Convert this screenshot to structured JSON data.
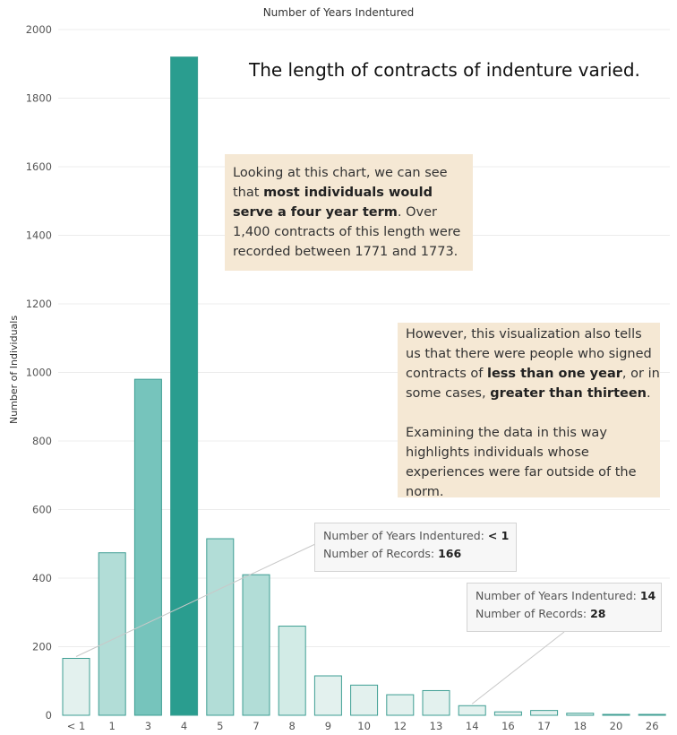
{
  "chart_data": {
    "type": "bar",
    "title": "Number of Years Indentured",
    "xlabel": "",
    "ylabel": "Number of Individuals",
    "ylim": [
      0,
      2000
    ],
    "yticks": [
      0,
      200,
      400,
      600,
      800,
      1000,
      1200,
      1400,
      1600,
      1800,
      2000
    ],
    "grid": true,
    "categories": [
      "< 1",
      "1",
      "3",
      "4",
      "5",
      "7",
      "8",
      "9",
      "10",
      "12",
      "13",
      "14",
      "16",
      "17",
      "18",
      "20",
      "26"
    ],
    "values": [
      166,
      474,
      980,
      1920,
      515,
      410,
      260,
      115,
      88,
      60,
      72,
      28,
      10,
      14,
      6,
      2,
      1
    ],
    "colors": {
      "darkest": "#2a9d8f",
      "dark": "#76c4bc",
      "medium": "#b2ddd7",
      "light": "#d2ebe6",
      "lightest": "#e3f1ee",
      "outline": "#3e9e93"
    }
  },
  "headline": "The length of contracts of indenture varied.",
  "note1": {
    "t1": "Looking at this chart, we can see that ",
    "b1": "most individuals would serve a four year term",
    "t2": ". Over 1,400 contracts of this length were recorded between 1771 and 1773."
  },
  "note2": {
    "t1": "However, this visualization also tells us that there were people who signed contracts of ",
    "b1": "less than one year",
    "t2": ", or in some cases, ",
    "b2": "greater than thirteen",
    "t3": ".",
    "p2": "Examining the data in this way highlights individuals whose experiences were far outside of the norm."
  },
  "tooltip1": {
    "label1": "Number of Years Indentured: ",
    "value1": "< 1",
    "label2": "Number of Records: ",
    "value2": "166"
  },
  "tooltip2": {
    "label1": "Number of Years Indentured: ",
    "value1": "14",
    "label2": "Number of Records: ",
    "value2": "28"
  }
}
